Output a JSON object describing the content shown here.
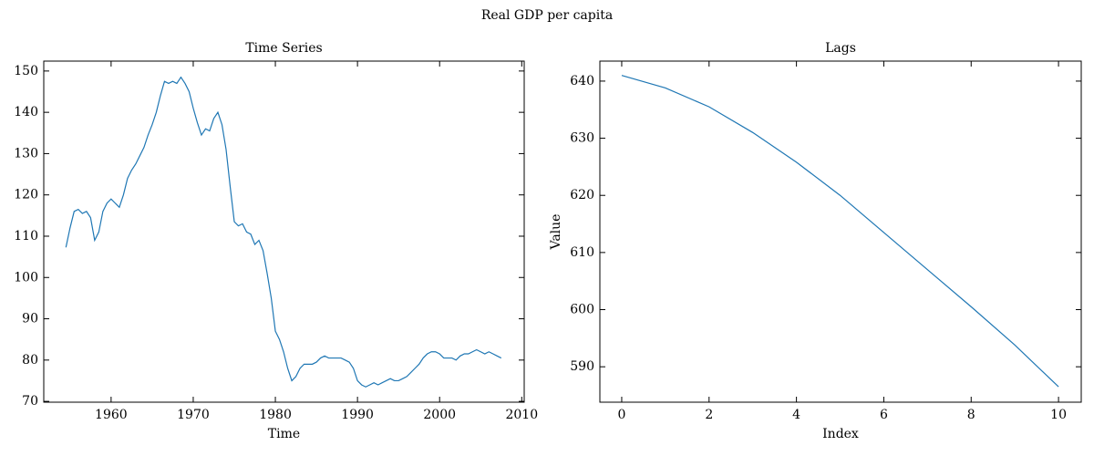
{
  "title": "Real GDP per capita",
  "chart_data": [
    {
      "type": "line",
      "title": "Time Series",
      "x_label": "Time",
      "color": "#1f77b4",
      "x": [
        1954.5,
        1955,
        1955.5,
        1956,
        1956.5,
        1957,
        1957.5,
        1958,
        1958.5,
        1959,
        1959.5,
        1960,
        1960.5,
        1961,
        1961.5,
        1962,
        1962.5,
        1963,
        1963.5,
        1964,
        1964.5,
        1965,
        1965.5,
        1966,
        1966.5,
        1967,
        1967.5,
        1968,
        1968.5,
        1969,
        1969.5,
        1970,
        1970.5,
        1971,
        1971.5,
        1972,
        1972.5,
        1973,
        1973.5,
        1974,
        1974.5,
        1975,
        1975.5,
        1976,
        1976.5,
        1977,
        1977.5,
        1978,
        1978.5,
        1979,
        1979.5,
        1980,
        1980.5,
        1981,
        1981.5,
        1982,
        1982.5,
        1983,
        1983.5,
        1984,
        1984.5,
        1985,
        1985.5,
        1986,
        1986.5,
        1987,
        1987.5,
        1988,
        1988.5,
        1989,
        1989.5,
        1990,
        1990.5,
        1991,
        1991.5,
        1992,
        1992.5,
        1993,
        1993.5,
        1994,
        1994.5,
        1995,
        1995.5,
        1996,
        1996.5,
        1997,
        1997.5,
        1998,
        1998.5,
        1999,
        1999.5,
        2000,
        2000.5,
        2001,
        2001.5,
        2002,
        2002.5,
        2003,
        2003.5,
        2004,
        2004.5,
        2005,
        2005.5,
        2006,
        2006.5,
        2007,
        2007.5
      ],
      "values": [
        107.3,
        112,
        116,
        116.5,
        115.5,
        116,
        114.5,
        109,
        111,
        116,
        118,
        119,
        118,
        117,
        120,
        124,
        126,
        127.5,
        129.5,
        131.5,
        134.5,
        137,
        140,
        144,
        147.5,
        147,
        147.5,
        147,
        148.5,
        147,
        145,
        141,
        137.5,
        134.5,
        136,
        135.5,
        138.5,
        140,
        137,
        131,
        122,
        113.5,
        112.5,
        113,
        111,
        110.5,
        108,
        109,
        106.5,
        101,
        95,
        87,
        85,
        82,
        78,
        75,
        76,
        78,
        79,
        79,
        79,
        79.5,
        80.5,
        81,
        80.5,
        80.5,
        80.5,
        80.5,
        80,
        79.5,
        78,
        75,
        74,
        73.5,
        74,
        74.5,
        74,
        74.5,
        75,
        75.5,
        75,
        75,
        75.5,
        76,
        77,
        78,
        79,
        80.5,
        81.5,
        82,
        82,
        81.5,
        80.5,
        80.5,
        80.5,
        80,
        81,
        81.5,
        81.5,
        82,
        82.5,
        82,
        81.5,
        82,
        81.5,
        81,
        80.5
      ],
      "xlim": [
        1951.8,
        2010.3
      ],
      "xticks": [
        1960,
        1970,
        1980,
        1990,
        2000,
        2010
      ],
      "ylim": [
        69.8,
        152.4
      ],
      "yticks": [
        70,
        80,
        90,
        100,
        110,
        120,
        130,
        140,
        150
      ]
    },
    {
      "type": "line",
      "title": "Lags",
      "x_label": "Index",
      "y_label": "Value",
      "color": "#1f77b4",
      "x": [
        0,
        1,
        2,
        3,
        4,
        5,
        6,
        7,
        8,
        9,
        10
      ],
      "values": [
        641,
        638.8,
        635.5,
        631,
        625.8,
        620,
        613.5,
        607,
        600.5,
        593.8,
        586.5
      ],
      "xlim": [
        -0.5,
        10.52
      ],
      "xticks": [
        0,
        2,
        4,
        6,
        8,
        10
      ],
      "ylim": [
        583.8,
        643.5
      ],
      "yticks": [
        590,
        600,
        610,
        620,
        630,
        640
      ]
    }
  ]
}
